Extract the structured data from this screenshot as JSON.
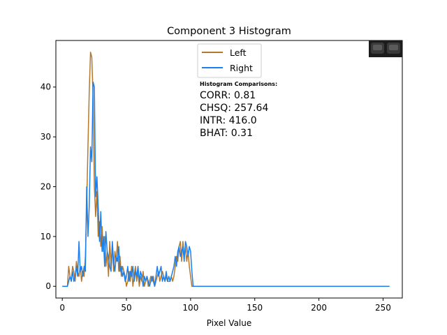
{
  "chart_data": {
    "type": "line",
    "title": "Component 3 Histogram",
    "xlabel": "Pixel Value",
    "ylabel": "",
    "xlim": [
      -5,
      265
    ],
    "ylim": [
      -2.35,
      49.35
    ],
    "x_ticks": [
      0,
      50,
      100,
      150,
      200,
      250
    ],
    "y_ticks": [
      0,
      10,
      20,
      30,
      40
    ],
    "grid": false,
    "legend_position": "top-center",
    "series": [
      {
        "name": "Left",
        "color": "#b5782a",
        "points": [
          [
            0,
            0
          ],
          [
            4,
            0
          ],
          [
            5,
            4
          ],
          [
            6,
            2
          ],
          [
            7,
            1
          ],
          [
            8,
            4
          ],
          [
            9,
            3
          ],
          [
            10,
            1
          ],
          [
            11,
            5
          ],
          [
            12,
            3
          ],
          [
            13,
            2
          ],
          [
            14,
            4
          ],
          [
            15,
            1
          ],
          [
            16,
            3
          ],
          [
            17,
            2
          ],
          [
            18,
            6
          ],
          [
            19,
            16
          ],
          [
            20,
            28
          ],
          [
            21,
            39
          ],
          [
            22,
            47
          ],
          [
            23,
            46
          ],
          [
            24,
            38
          ],
          [
            25,
            20
          ],
          [
            26,
            14
          ],
          [
            27,
            19
          ],
          [
            28,
            10
          ],
          [
            29,
            13
          ],
          [
            30,
            8
          ],
          [
            31,
            12
          ],
          [
            32,
            7
          ],
          [
            33,
            10
          ],
          [
            34,
            4
          ],
          [
            35,
            7
          ],
          [
            36,
            2
          ],
          [
            37,
            9
          ],
          [
            38,
            4
          ],
          [
            39,
            8
          ],
          [
            40,
            3
          ],
          [
            41,
            7
          ],
          [
            42,
            5
          ],
          [
            43,
            9
          ],
          [
            44,
            3
          ],
          [
            45,
            6
          ],
          [
            46,
            2
          ],
          [
            47,
            4
          ],
          [
            48,
            3
          ],
          [
            49,
            2
          ],
          [
            50,
            0
          ],
          [
            51,
            1
          ],
          [
            52,
            3
          ],
          [
            53,
            1
          ],
          [
            54,
            4
          ],
          [
            55,
            0
          ],
          [
            56,
            2
          ],
          [
            57,
            4
          ],
          [
            58,
            1
          ],
          [
            59,
            3
          ],
          [
            60,
            0
          ],
          [
            61,
            2
          ],
          [
            62,
            1
          ],
          [
            63,
            3
          ],
          [
            64,
            0
          ],
          [
            65,
            1
          ],
          [
            66,
            2
          ],
          [
            67,
            0
          ],
          [
            68,
            1
          ],
          [
            69,
            2
          ],
          [
            70,
            1
          ],
          [
            71,
            2
          ],
          [
            72,
            0
          ],
          [
            73,
            1
          ],
          [
            74,
            2
          ],
          [
            75,
            3
          ],
          [
            76,
            1
          ],
          [
            77,
            2
          ],
          [
            78,
            3
          ],
          [
            79,
            2
          ],
          [
            80,
            1
          ],
          [
            81,
            2
          ],
          [
            82,
            1
          ],
          [
            83,
            1
          ],
          [
            84,
            1
          ],
          [
            85,
            2
          ],
          [
            86,
            1
          ],
          [
            87,
            2
          ],
          [
            88,
            4
          ],
          [
            89,
            6
          ],
          [
            90,
            5
          ],
          [
            91,
            8
          ],
          [
            92,
            9
          ],
          [
            93,
            5
          ],
          [
            94,
            9
          ],
          [
            95,
            6
          ],
          [
            96,
            8
          ],
          [
            97,
            5
          ],
          [
            98,
            7
          ],
          [
            99,
            4
          ],
          [
            100,
            2
          ],
          [
            101,
            0
          ],
          [
            102,
            0
          ],
          [
            150,
            0
          ],
          [
            200,
            0
          ],
          [
            255,
            0
          ]
        ]
      },
      {
        "name": "Right",
        "color": "#1a80f0",
        "points": [
          [
            0,
            0
          ],
          [
            3,
            0
          ],
          [
            4,
            0
          ],
          [
            5,
            1
          ],
          [
            6,
            2
          ],
          [
            7,
            1
          ],
          [
            8,
            3
          ],
          [
            9,
            1
          ],
          [
            10,
            2
          ],
          [
            11,
            4
          ],
          [
            12,
            2
          ],
          [
            13,
            9
          ],
          [
            14,
            3
          ],
          [
            15,
            4
          ],
          [
            16,
            2
          ],
          [
            17,
            4
          ],
          [
            18,
            3
          ],
          [
            19,
            20
          ],
          [
            20,
            10
          ],
          [
            21,
            16
          ],
          [
            22,
            28
          ],
          [
            23,
            25
          ],
          [
            24,
            41
          ],
          [
            25,
            40
          ],
          [
            26,
            18
          ],
          [
            27,
            22
          ],
          [
            28,
            16
          ],
          [
            29,
            9
          ],
          [
            30,
            15
          ],
          [
            31,
            7
          ],
          [
            32,
            10
          ],
          [
            33,
            4
          ],
          [
            34,
            11
          ],
          [
            35,
            7
          ],
          [
            36,
            6
          ],
          [
            37,
            4
          ],
          [
            38,
            3
          ],
          [
            39,
            9
          ],
          [
            40,
            5
          ],
          [
            41,
            3
          ],
          [
            42,
            6
          ],
          [
            43,
            5
          ],
          [
            44,
            8
          ],
          [
            45,
            3
          ],
          [
            46,
            4
          ],
          [
            47,
            2
          ],
          [
            48,
            3
          ],
          [
            49,
            1
          ],
          [
            50,
            2
          ],
          [
            51,
            4
          ],
          [
            52,
            1
          ],
          [
            53,
            3
          ],
          [
            54,
            2
          ],
          [
            55,
            4
          ],
          [
            56,
            1
          ],
          [
            57,
            3
          ],
          [
            58,
            2
          ],
          [
            59,
            4
          ],
          [
            60,
            1
          ],
          [
            61,
            3
          ],
          [
            62,
            2
          ],
          [
            63,
            0
          ],
          [
            64,
            2
          ],
          [
            65,
            1
          ],
          [
            66,
            2
          ],
          [
            67,
            1
          ],
          [
            68,
            0
          ],
          [
            69,
            1
          ],
          [
            70,
            2
          ],
          [
            71,
            1
          ],
          [
            72,
            0
          ],
          [
            73,
            2
          ],
          [
            74,
            4
          ],
          [
            75,
            2
          ],
          [
            76,
            3
          ],
          [
            77,
            4
          ],
          [
            78,
            1
          ],
          [
            79,
            2
          ],
          [
            80,
            1
          ],
          [
            81,
            3
          ],
          [
            82,
            1
          ],
          [
            83,
            2
          ],
          [
            84,
            1
          ],
          [
            85,
            2
          ],
          [
            86,
            3
          ],
          [
            87,
            4
          ],
          [
            88,
            6
          ],
          [
            89,
            4
          ],
          [
            90,
            7
          ],
          [
            91,
            8
          ],
          [
            92,
            6
          ],
          [
            93,
            7
          ],
          [
            94,
            8
          ],
          [
            95,
            5
          ],
          [
            96,
            9
          ],
          [
            97,
            8
          ],
          [
            98,
            6
          ],
          [
            99,
            8
          ],
          [
            100,
            7
          ],
          [
            101,
            3
          ],
          [
            102,
            0
          ],
          [
            150,
            0
          ],
          [
            200,
            0
          ],
          [
            255,
            0
          ]
        ]
      }
    ],
    "annotations": {
      "heading": "Histogram Comparisons:",
      "lines": [
        "CORR:  0.81",
        "CHSQ:  257.64",
        "INTR:  416.0",
        "BHAT:  0.31"
      ]
    }
  }
}
